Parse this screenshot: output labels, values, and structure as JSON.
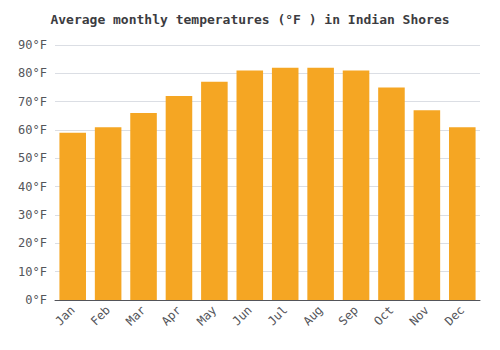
{
  "chart_data": {
    "type": "bar",
    "title": "Average monthly temperatures (°F ) in Indian Shores",
    "categories": [
      "Jan",
      "Feb",
      "Mar",
      "Apr",
      "May",
      "Jun",
      "Jul",
      "Aug",
      "Sep",
      "Oct",
      "Nov",
      "Dec"
    ],
    "values": [
      59,
      61,
      66,
      72,
      77,
      81,
      82,
      82,
      81,
      75,
      67,
      61
    ],
    "color": "#F5A623",
    "ylim": [
      0,
      90
    ],
    "yticks": [
      {
        "value": 0,
        "label": "0°F"
      },
      {
        "value": 10,
        "label": "10°F"
      },
      {
        "value": 20,
        "label": "20°F"
      },
      {
        "value": 30,
        "label": "30°F"
      },
      {
        "value": 40,
        "label": "40°F"
      },
      {
        "value": 50,
        "label": "50°F"
      },
      {
        "value": 60,
        "label": "60°F"
      },
      {
        "value": 70,
        "label": "70°F"
      },
      {
        "value": 80,
        "label": "80°F"
      },
      {
        "value": 90,
        "label": "90°F"
      }
    ],
    "grid": true
  }
}
